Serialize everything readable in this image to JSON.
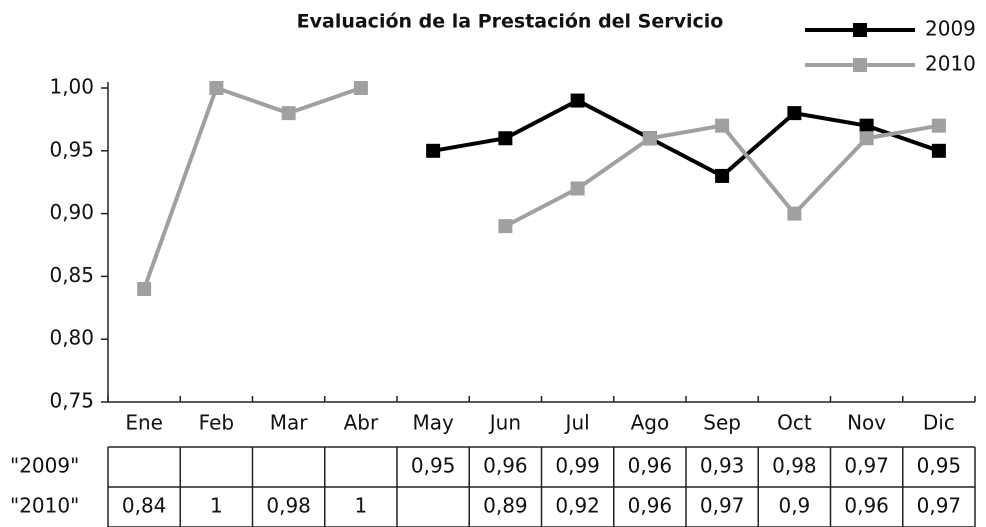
{
  "chart_data": {
    "type": "line",
    "title": "Evaluación de la Prestación del Servicio",
    "categories": [
      "Ene",
      "Feb",
      "Mar",
      "Abr",
      "May",
      "Jun",
      "Jul",
      "Ago",
      "Sep",
      "Oct",
      "Nov",
      "Dic"
    ],
    "series": [
      {
        "name": "2009",
        "color": "#000000",
        "values": [
          null,
          null,
          null,
          null,
          0.95,
          0.96,
          0.99,
          0.96,
          0.93,
          0.98,
          0.97,
          0.95
        ],
        "value_labels": [
          null,
          null,
          null,
          null,
          "0,95",
          "0,96",
          "0,99",
          "0,96",
          "0,93",
          "0,98",
          "0,97",
          "0,95"
        ]
      },
      {
        "name": "2010",
        "color": "#a0a0a0",
        "values": [
          0.84,
          1,
          0.98,
          1,
          null,
          0.89,
          0.92,
          0.96,
          0.97,
          0.9,
          0.96,
          0.97
        ],
        "value_labels": [
          "0,84",
          "1",
          "0,98",
          "1",
          null,
          "0,89",
          "0,92",
          "0,96",
          "0,97",
          "0,9",
          "0,96",
          "0,97"
        ]
      }
    ],
    "table_row_labels": [
      "\"2009\"",
      "\"2010\""
    ],
    "ylim": [
      0.75,
      1.0
    ],
    "yticks": [
      {
        "value": 0.75,
        "label": "0,75"
      },
      {
        "value": 0.8,
        "label": "0,80"
      },
      {
        "value": 0.85,
        "label": "0,85"
      },
      {
        "value": 0.9,
        "label": "0,90"
      },
      {
        "value": 0.95,
        "label": "0,95"
      },
      {
        "value": 1.0,
        "label": "1,00"
      }
    ],
    "grid": false,
    "legend": "top-right"
  }
}
